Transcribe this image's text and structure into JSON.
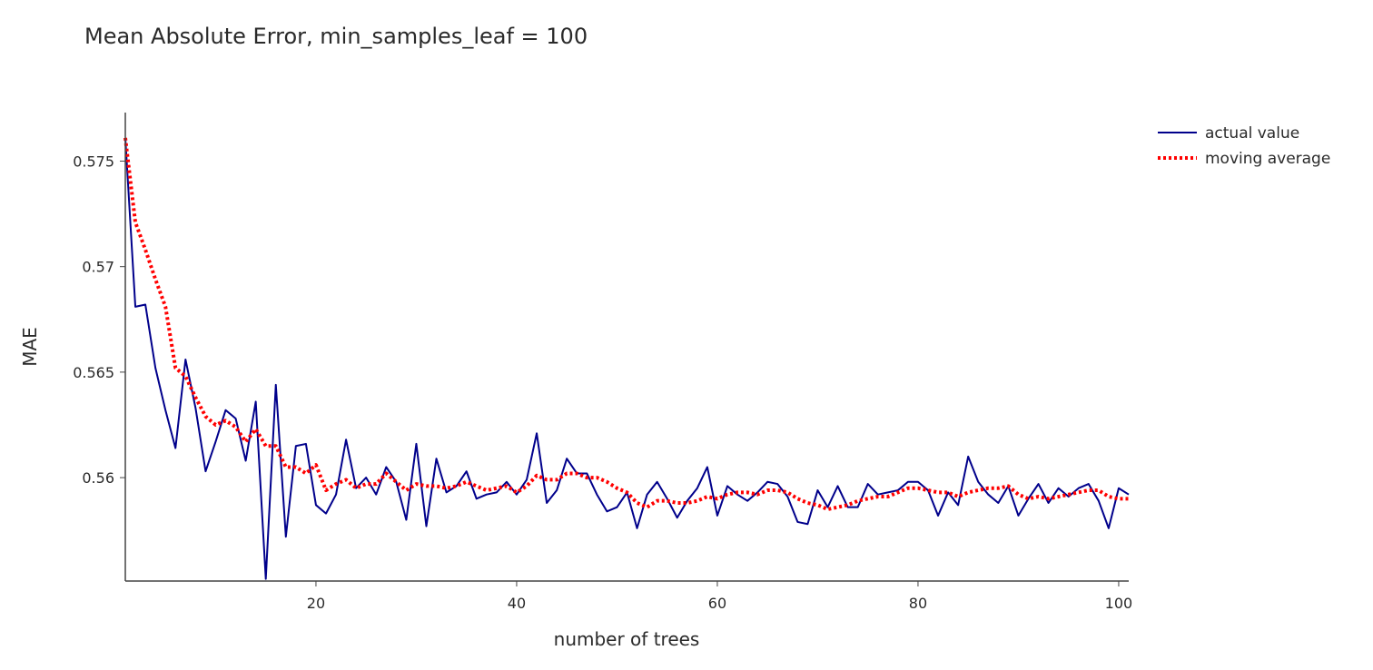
{
  "chart_data": {
    "type": "line",
    "title": "Mean Absolute Error, min_samples_leaf = 100",
    "xlabel": "number of trees",
    "ylabel": "MAE",
    "xlim": [
      1,
      101
    ],
    "ylim": [
      0.5551,
      0.5773
    ],
    "xticks": [
      20,
      40,
      60,
      80,
      100
    ],
    "yticks": [
      0.56,
      0.565,
      0.57,
      0.575
    ],
    "ytick_labels": [
      "0.56",
      "0.565",
      "0.57",
      "0.575"
    ],
    "legend_position": "top-right",
    "grid": false,
    "x": [
      1,
      2,
      3,
      4,
      5,
      6,
      7,
      8,
      9,
      10,
      11,
      12,
      13,
      14,
      15,
      16,
      17,
      18,
      19,
      20,
      21,
      22,
      23,
      24,
      25,
      26,
      27,
      28,
      29,
      30,
      31,
      32,
      33,
      34,
      35,
      36,
      37,
      38,
      39,
      40,
      41,
      42,
      43,
      44,
      45,
      46,
      47,
      48,
      49,
      50,
      51,
      52,
      53,
      54,
      55,
      56,
      57,
      58,
      59,
      60,
      61,
      62,
      63,
      64,
      65,
      66,
      67,
      68,
      69,
      70,
      71,
      72,
      73,
      74,
      75,
      76,
      77,
      78,
      79,
      80,
      81,
      82,
      83,
      84,
      85,
      86,
      87,
      88,
      89,
      90,
      91,
      92,
      93,
      94,
      95,
      96,
      97,
      98,
      99,
      100,
      101
    ],
    "series": [
      {
        "name": "actual value",
        "color": "#00008b",
        "dash": "solid",
        "values": [
          0.5761,
          0.5681,
          0.5682,
          0.5652,
          0.5632,
          0.5614,
          0.5656,
          0.5633,
          0.5603,
          0.5617,
          0.5632,
          0.5628,
          0.5608,
          0.5636,
          0.5552,
          0.5644,
          0.5572,
          0.5615,
          0.5616,
          0.5587,
          0.5583,
          0.5592,
          0.5618,
          0.5595,
          0.56,
          0.5592,
          0.5605,
          0.5598,
          0.558,
          0.5616,
          0.5577,
          0.5609,
          0.5593,
          0.5596,
          0.5603,
          0.559,
          0.5592,
          0.5593,
          0.5598,
          0.5592,
          0.5599,
          0.5621,
          0.5588,
          0.5594,
          0.5609,
          0.5602,
          0.5602,
          0.5592,
          0.5584,
          0.5586,
          0.5593,
          0.5576,
          0.5592,
          0.5598,
          0.559,
          0.5581,
          0.5589,
          0.5595,
          0.5605,
          0.5582,
          0.5596,
          0.5592,
          0.5589,
          0.5593,
          0.5598,
          0.5597,
          0.5591,
          0.5579,
          0.5578,
          0.5594,
          0.5586,
          0.5596,
          0.5586,
          0.5586,
          0.5597,
          0.5592,
          0.5593,
          0.5594,
          0.5598,
          0.5598,
          0.5594,
          0.5582,
          0.5593,
          0.5587,
          0.561,
          0.5598,
          0.5592,
          0.5588,
          0.5596,
          0.5582,
          0.559,
          0.5597,
          0.5588,
          0.5595,
          0.5591,
          0.5595,
          0.5597,
          0.5589,
          0.5576,
          0.5595,
          0.5592
        ]
      },
      {
        "name": "moving average",
        "color": "#ff0000",
        "dash": "dotted",
        "values": [
          0.5761,
          0.5721,
          0.5708,
          0.5694,
          0.5681,
          0.5652,
          0.5648,
          0.5638,
          0.5629,
          0.5625,
          0.5627,
          0.5624,
          0.5617,
          0.5623,
          0.5615,
          0.5615,
          0.5605,
          0.5605,
          0.5602,
          0.5606,
          0.5594,
          0.5597,
          0.5599,
          0.5595,
          0.5597,
          0.5597,
          0.5602,
          0.5598,
          0.5594,
          0.5597,
          0.5596,
          0.5596,
          0.5595,
          0.5596,
          0.5598,
          0.5596,
          0.5594,
          0.5595,
          0.5596,
          0.5593,
          0.5596,
          0.5601,
          0.5599,
          0.5599,
          0.5602,
          0.5602,
          0.56,
          0.56,
          0.5598,
          0.5595,
          0.5593,
          0.5588,
          0.5586,
          0.5589,
          0.5589,
          0.5588,
          0.5588,
          0.5589,
          0.5591,
          0.559,
          0.5592,
          0.5593,
          0.5593,
          0.5592,
          0.5594,
          0.5594,
          0.5593,
          0.559,
          0.5588,
          0.5587,
          0.5585,
          0.5586,
          0.5587,
          0.5589,
          0.559,
          0.5591,
          0.5591,
          0.5593,
          0.5595,
          0.5595,
          0.5594,
          0.5593,
          0.5593,
          0.5591,
          0.5593,
          0.5594,
          0.5595,
          0.5595,
          0.5596,
          0.5592,
          0.559,
          0.5591,
          0.559,
          0.5591,
          0.5592,
          0.5593,
          0.5594,
          0.5594,
          0.5591,
          0.559,
          0.559
        ]
      }
    ]
  }
}
